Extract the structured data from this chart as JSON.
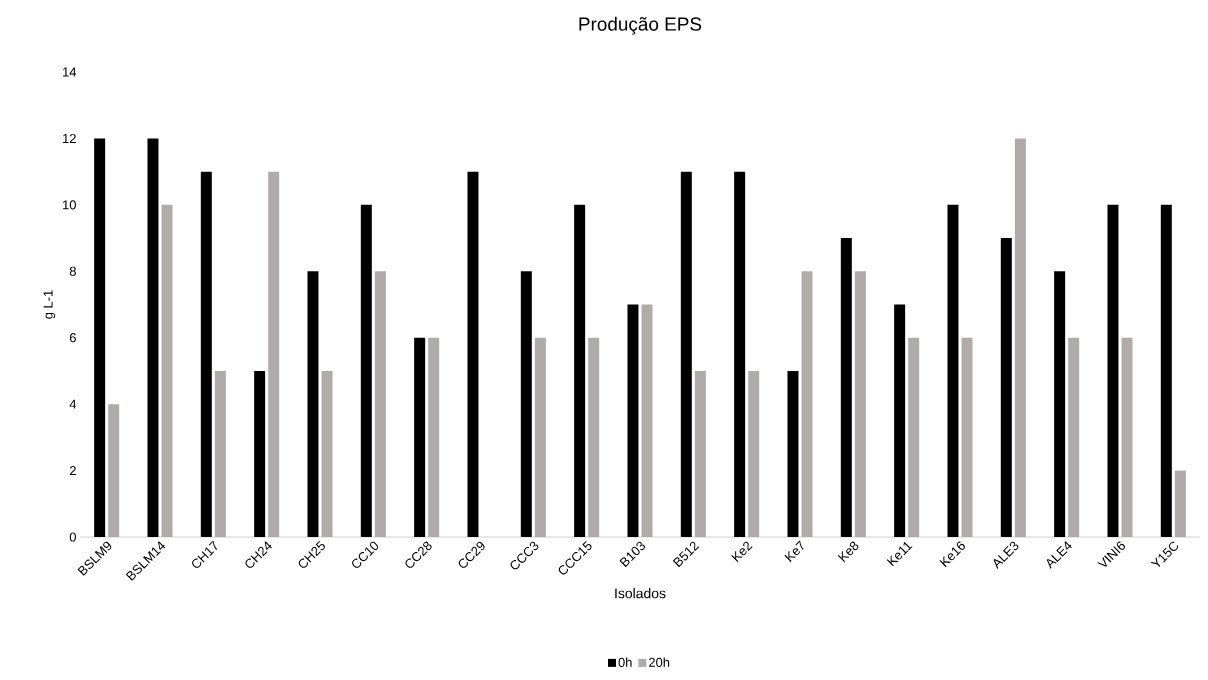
{
  "chart_data": {
    "type": "bar",
    "title": "Produção EPS",
    "xlabel": "Isolados",
    "ylabel": "g L-1",
    "categories": [
      "BSLM9",
      "BSLM14",
      "CH17",
      "CH24",
      "CH25",
      "CC10",
      "CC28",
      "CC29",
      "CCC3",
      "CCC15",
      "B103",
      "B512",
      "Ke2",
      "Ke7",
      "Ke8",
      "Ke11",
      "Ke16",
      "ALE3",
      "ALE4",
      "VINI6",
      "Y15C"
    ],
    "series": [
      {
        "name": "0h",
        "color": "#000000",
        "values": [
          12,
          12,
          11,
          5,
          8,
          10,
          6,
          11,
          8,
          10,
          7,
          11,
          11,
          5,
          9,
          7,
          10,
          9,
          8,
          10,
          10
        ]
      },
      {
        "name": "20h",
        "color": "#afabab",
        "values": [
          4,
          10,
          5,
          11,
          5,
          8,
          6,
          0,
          6,
          6,
          7,
          5,
          5,
          8,
          8,
          6,
          6,
          12,
          6,
          6,
          2
        ]
      }
    ],
    "ylim": [
      0,
      14
    ],
    "yticks": [
      0,
      2,
      4,
      6,
      8,
      10,
      12,
      14
    ],
    "grid": false,
    "legend": "bottom"
  }
}
